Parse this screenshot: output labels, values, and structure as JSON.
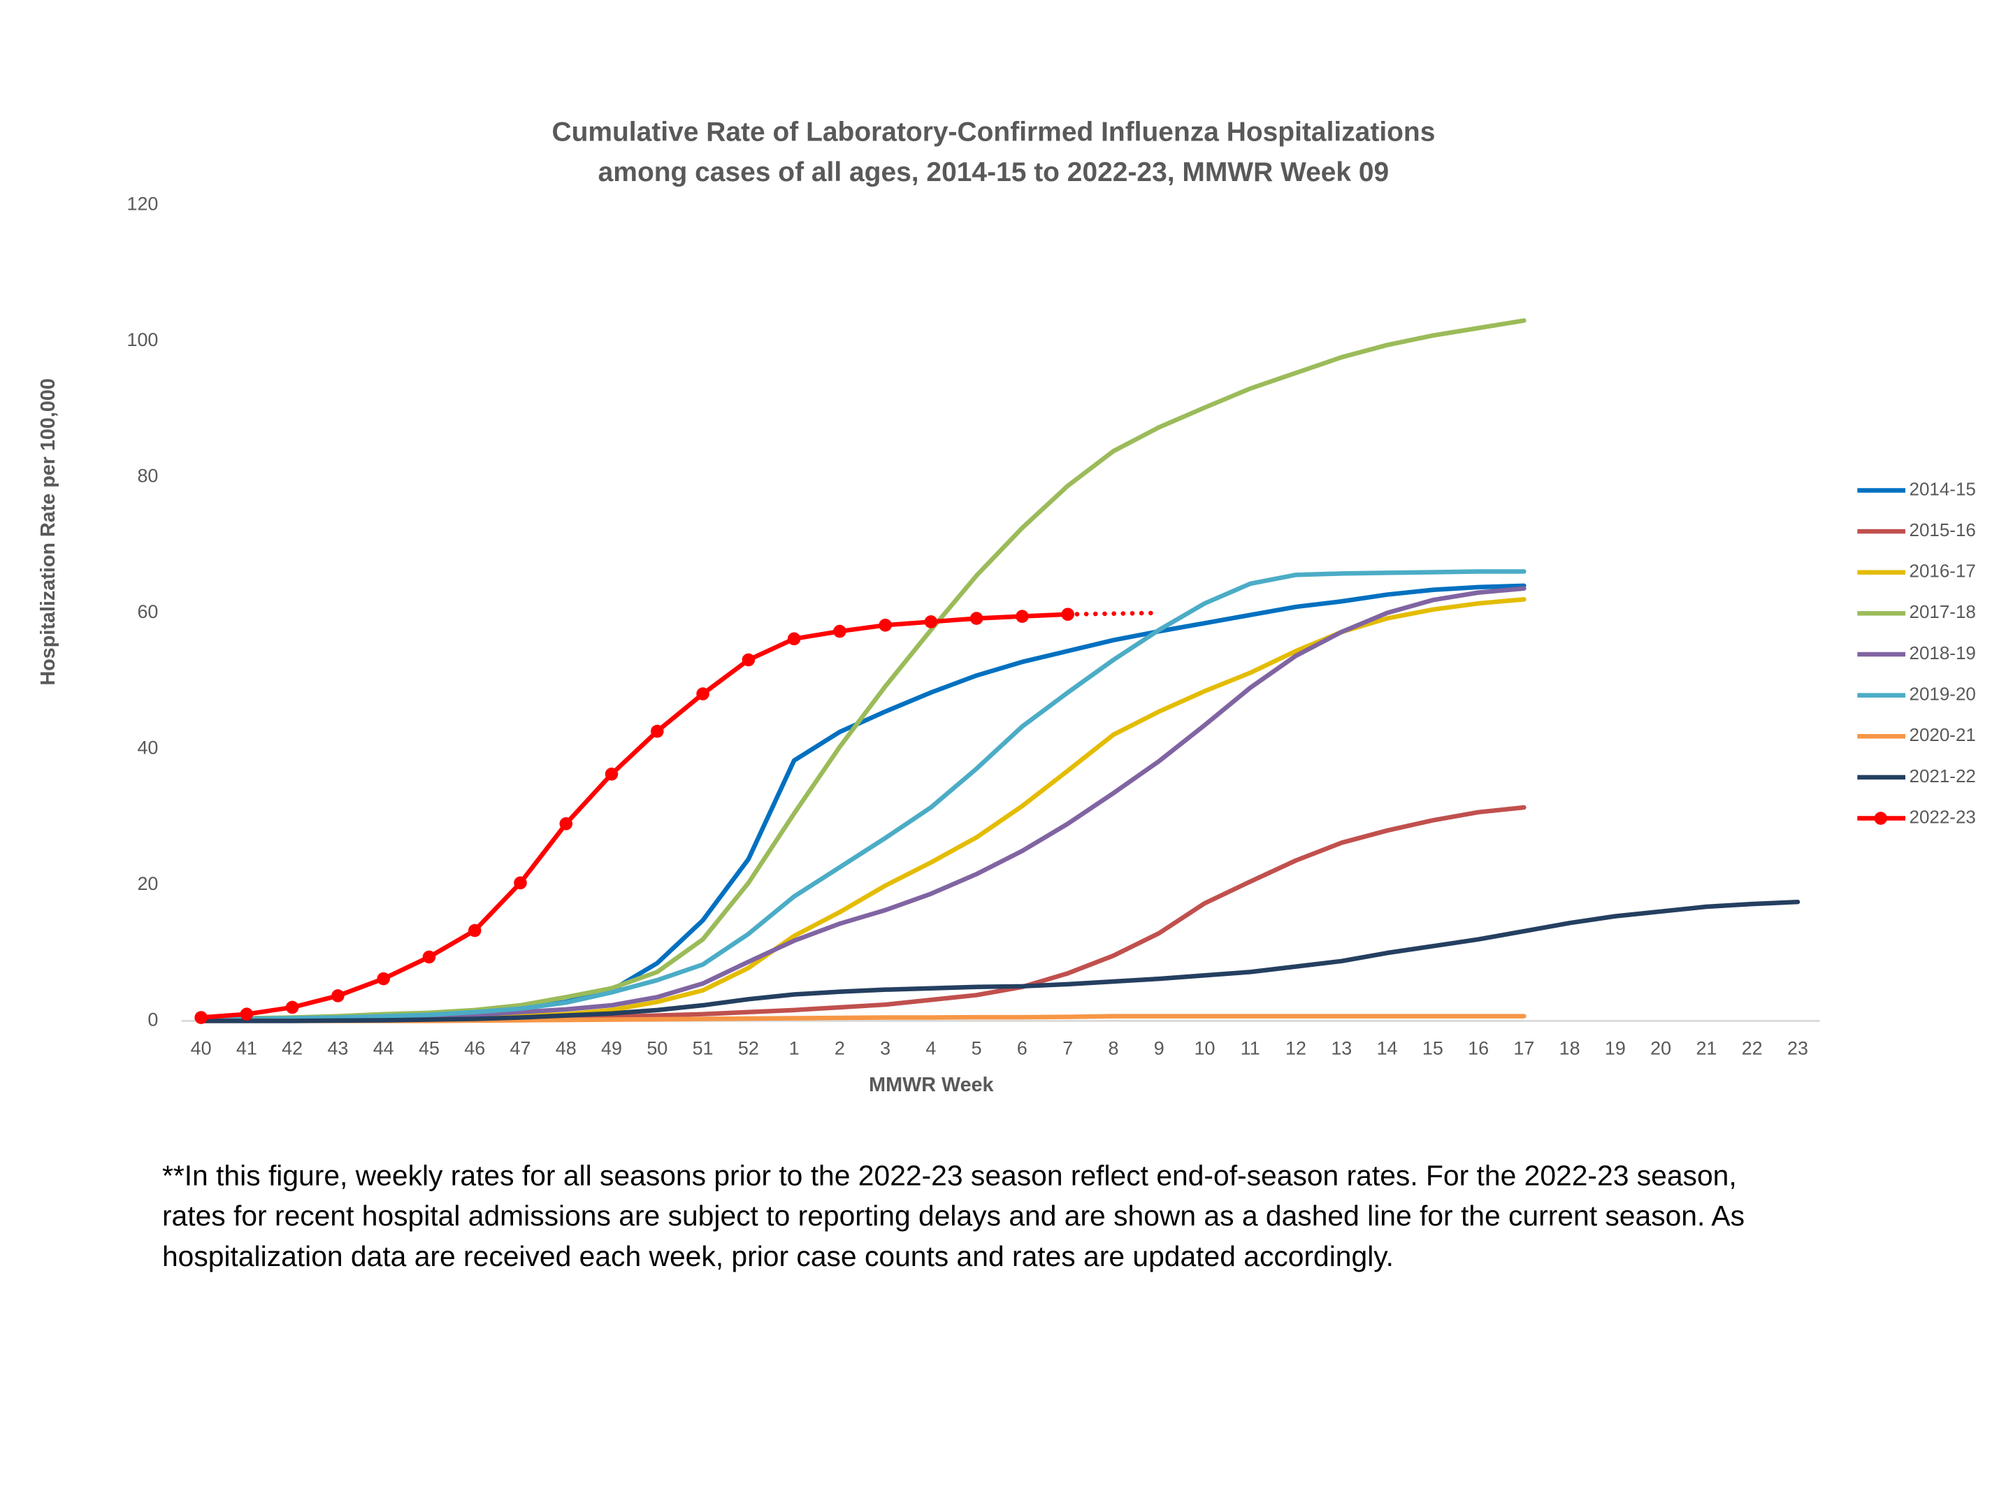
{
  "chart_data": {
    "type": "line",
    "title": [
      "Cumulative Rate of Laboratory-Confirmed Influenza Hospitalizations",
      "among cases of all ages, 2014-15 to 2022-23, MMWR Week 09"
    ],
    "x_label": "MMWR Week",
    "y_label": "Hospitalization Rate per 100,000",
    "footnote": [
      "**In this figure, weekly rates for all seasons prior to the 2022-23 season reflect end-of-season rates. For the 2022-23 season,",
      "rates for recent hospital admissions are subject to reporting delays and are shown as a dashed line for the current season. As",
      "hospitalization data are received each week, prior case counts and rates are updated accordingly."
    ],
    "categories": [
      "40",
      "41",
      "42",
      "43",
      "44",
      "45",
      "46",
      "47",
      "48",
      "49",
      "50",
      "51",
      "52",
      "1",
      "2",
      "3",
      "4",
      "5",
      "6",
      "7",
      "8",
      "9",
      "10",
      "11",
      "12",
      "13",
      "14",
      "15",
      "16",
      "17",
      "18",
      "19",
      "20",
      "21",
      "22",
      "23"
    ],
    "ylim": [
      0,
      120
    ],
    "yticks": [
      0,
      20,
      40,
      60,
      80,
      100,
      120
    ],
    "grid": false,
    "legend_position": "right",
    "series": [
      {
        "name": "2014-15",
        "color": "#0070C0",
        "values": [
          0.2,
          0.3,
          0.4,
          0.5,
          0.6,
          0.8,
          1.2,
          1.8,
          2.8,
          4.5,
          8.5,
          14.8,
          23.8,
          38.3,
          42.5,
          45.5,
          48.3,
          50.8,
          52.8,
          54.4,
          56,
          57.3,
          58.5,
          59.7,
          60.9,
          61.7,
          62.7,
          63.4,
          63.8,
          64.0,
          null,
          null,
          null,
          null,
          null,
          null
        ]
      },
      {
        "name": "2015-16",
        "color": "#C0504D",
        "values": [
          0,
          0.05,
          0.1,
          0.1,
          0.15,
          0.2,
          0.3,
          0.4,
          0.5,
          0.6,
          0.8,
          1.0,
          1.3,
          1.6,
          2.0,
          2.4,
          3.1,
          3.8,
          5.0,
          7.0,
          9.6,
          12.9,
          17.3,
          20.5,
          23.6,
          26.2,
          28.0,
          29.5,
          30.7,
          31.4,
          null,
          null,
          null,
          null,
          null,
          null
        ]
      },
      {
        "name": "2016-17",
        "color": "#E4BC00",
        "values": [
          0.1,
          0.1,
          0.2,
          0.2,
          0.3,
          0.4,
          0.5,
          0.7,
          1.0,
          1.6,
          2.8,
          4.5,
          7.8,
          12.5,
          16.0,
          19.9,
          23.3,
          27.0,
          31.6,
          36.8,
          42.1,
          45.5,
          48.5,
          51.2,
          54.4,
          57.2,
          59.2,
          60.5,
          61.4,
          62.0,
          null,
          null,
          null,
          null,
          null,
          null
        ]
      },
      {
        "name": "2017-18",
        "color": "#9BBB59",
        "values": [
          0.3,
          0.4,
          0.5,
          0.7,
          1.0,
          1.2,
          1.6,
          2.3,
          3.5,
          4.8,
          7.2,
          12.0,
          20.3,
          30.5,
          40.3,
          49.2,
          57.5,
          65.5,
          72.5,
          78.7,
          83.8,
          87.3,
          90.2,
          93.0,
          95.3,
          97.6,
          99.4,
          100.8,
          101.9,
          103.0,
          null,
          null,
          null,
          null,
          null,
          null
        ]
      },
      {
        "name": "2018-19",
        "color": "#8064A2",
        "values": [
          0.1,
          0.1,
          0.2,
          0.3,
          0.4,
          0.6,
          0.9,
          1.3,
          1.7,
          2.3,
          3.5,
          5.5,
          8.7,
          11.8,
          14.3,
          16.3,
          18.7,
          21.6,
          25.0,
          29.0,
          33.5,
          38.2,
          43.5,
          49.0,
          53.7,
          57.2,
          60.0,
          61.9,
          63.0,
          63.6,
          null,
          null,
          null,
          null,
          null,
          null
        ]
      },
      {
        "name": "2019-20",
        "color": "#4BACC6",
        "values": [
          0.2,
          0.3,
          0.4,
          0.5,
          0.7,
          0.9,
          1.3,
          1.8,
          2.7,
          4.2,
          6.0,
          8.3,
          12.8,
          18.3,
          22.6,
          26.9,
          31.4,
          37.1,
          43.3,
          48.3,
          53.1,
          57.5,
          61.4,
          64.3,
          65.6,
          65.8,
          65.9,
          66.0,
          66.1,
          66.1,
          null,
          null,
          null,
          null,
          null,
          null
        ]
      },
      {
        "name": "2020-21",
        "color": "#F79646",
        "values": [
          0,
          0,
          0,
          0,
          0,
          0,
          0.05,
          0.1,
          0.15,
          0.2,
          0.25,
          0.3,
          0.35,
          0.4,
          0.45,
          0.5,
          0.5,
          0.55,
          0.55,
          0.6,
          0.7,
          0.7,
          0.7,
          0.7,
          0.7,
          0.7,
          0.7,
          0.7,
          0.7,
          0.7,
          null,
          null,
          null,
          null,
          null,
          null
        ]
      },
      {
        "name": "2021-22",
        "color": "#243F60",
        "values": [
          0,
          0,
          0,
          0.05,
          0.1,
          0.2,
          0.3,
          0.5,
          0.8,
          1.1,
          1.6,
          2.3,
          3.2,
          3.9,
          4.3,
          4.6,
          4.8,
          5.0,
          5.1,
          5.4,
          5.8,
          6.2,
          6.7,
          7.2,
          8.0,
          8.8,
          10.0,
          11.0,
          12.0,
          13.2,
          14.4,
          15.4,
          16.1,
          16.8,
          17.2,
          17.5
        ]
      },
      {
        "name": "2022-23",
        "color": "#FF0000",
        "markers": true,
        "values": [
          0.5,
          1.0,
          2.0,
          3.7,
          6.2,
          9.4,
          13.3,
          20.3,
          29.0,
          36.3,
          42.6,
          48.1,
          53.1,
          56.2,
          57.3,
          58.2,
          58.7,
          59.2,
          59.5,
          59.8,
          null,
          null,
          null,
          null,
          null,
          null,
          null,
          null,
          null,
          null,
          null,
          null,
          null,
          null,
          null,
          null
        ],
        "dashed_values": [
          null,
          null,
          null,
          null,
          null,
          null,
          null,
          null,
          null,
          null,
          null,
          null,
          null,
          null,
          null,
          null,
          null,
          null,
          null,
          59.8,
          59.9,
          60.0,
          null,
          null,
          null,
          null,
          null,
          null,
          null,
          null,
          null,
          null,
          null,
          null,
          null,
          null
        ]
      }
    ]
  }
}
